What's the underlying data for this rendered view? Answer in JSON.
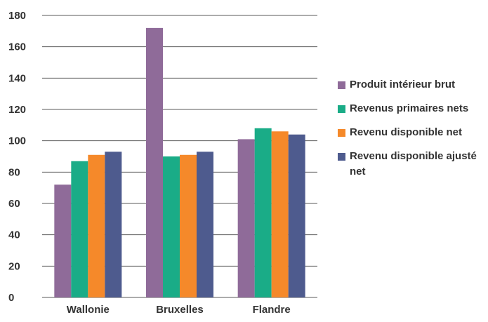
{
  "chart_data": {
    "type": "bar",
    "categories": [
      "Wallonie",
      "Bruxelles",
      "Flandre"
    ],
    "series": [
      {
        "name": "Produit intérieur brut",
        "color": "#8f6b99",
        "values": [
          72,
          172,
          101
        ]
      },
      {
        "name": "Revenus primaires nets",
        "color": "#1aac87",
        "values": [
          87,
          90,
          108
        ]
      },
      {
        "name": "Revenu disponible net",
        "color": "#f5892a",
        "values": [
          91,
          91,
          106
        ]
      },
      {
        "name": "Revenu disponible ajusté net",
        "color": "#4e5b8e",
        "values": [
          93,
          93,
          104
        ]
      }
    ],
    "ylim": [
      0,
      180
    ],
    "yticks": [
      "0",
      "20",
      "40",
      "60",
      "80",
      "100",
      "120",
      "140",
      "160",
      "180"
    ],
    "grid": true,
    "legend": "right"
  }
}
